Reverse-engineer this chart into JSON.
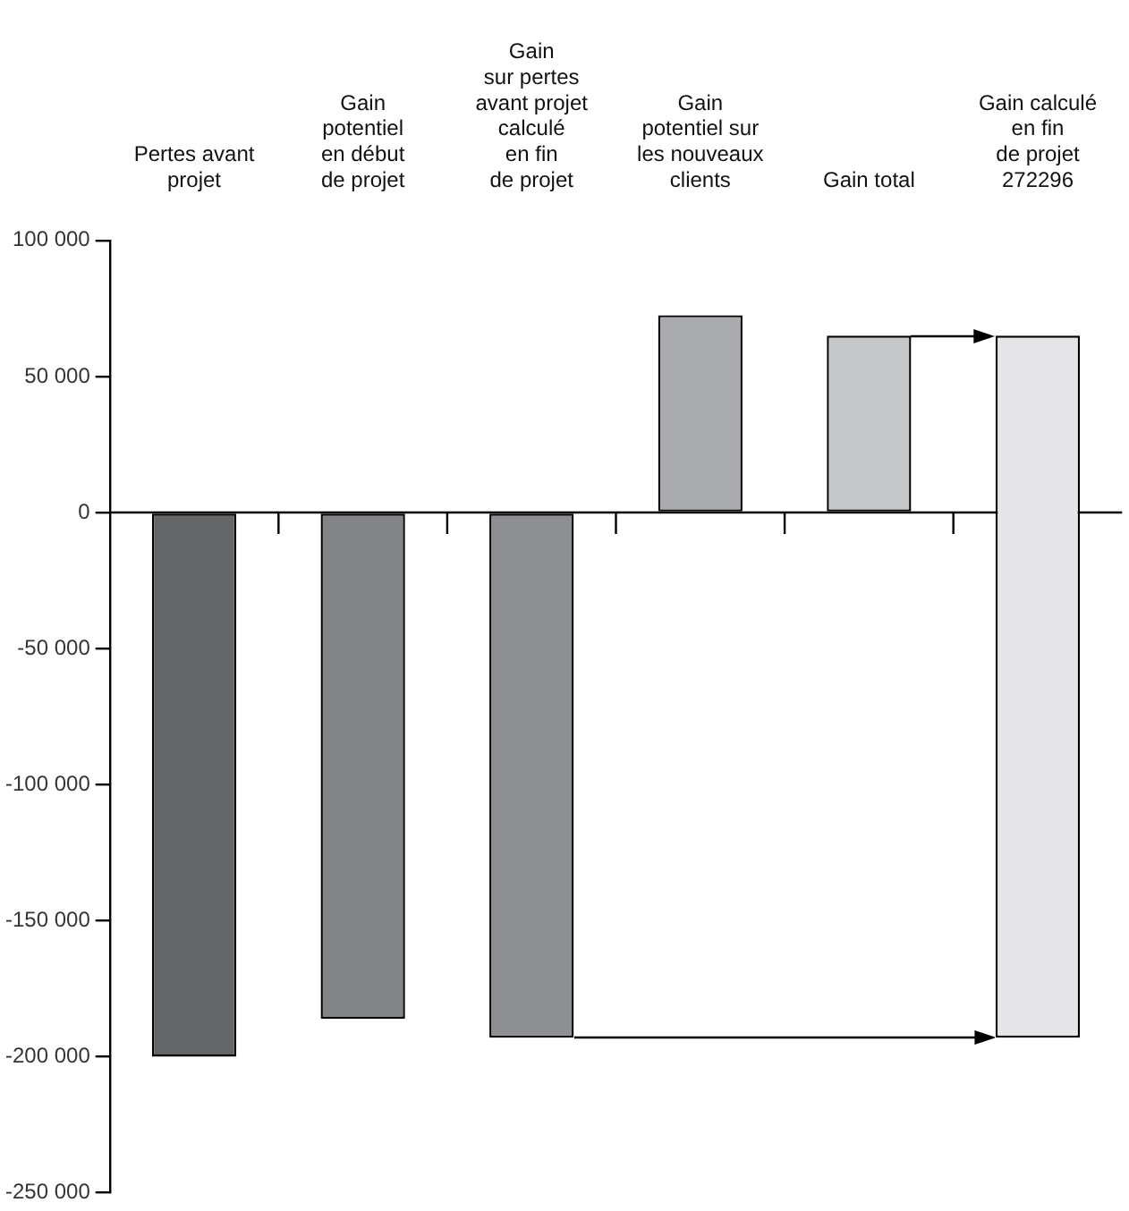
{
  "chart_data": {
    "type": "bar",
    "categories": [
      "Pertes avant\nprojet",
      "Gain\npotentiel\nen début\nde projet",
      "Gain\nsur pertes\navant projet\ncalculé\nen fin\nde projet",
      "Gain\npotentiel sur\nles nouveaux\nclients",
      "Gain total",
      "Gain calculé\nen fin\nde projet\n272296"
    ],
    "values": [
      -200000,
      -186000,
      -193000,
      72500,
      65000,
      258000
    ],
    "base": [
      0,
      0,
      0,
      0,
      0,
      -193000
    ],
    "colors": [
      "#646567",
      "#838488",
      "#8e8f92",
      "#aaabae",
      "#c6c7c9",
      "#e5e5e7"
    ],
    "ylim": [
      -250000,
      100000
    ],
    "yticks": [
      {
        "value": -250000,
        "label": "-250 000"
      },
      {
        "value": -200000,
        "label": "-200 000"
      },
      {
        "value": -150000,
        "label": "-150 000"
      },
      {
        "value": -100000,
        "label": "-100 000"
      },
      {
        "value": -50000,
        "label": "-50 000"
      },
      0,
      {
        "value": 50000,
        "label": "50 000"
      },
      {
        "value": 100000,
        "label": "100 000"
      }
    ]
  }
}
